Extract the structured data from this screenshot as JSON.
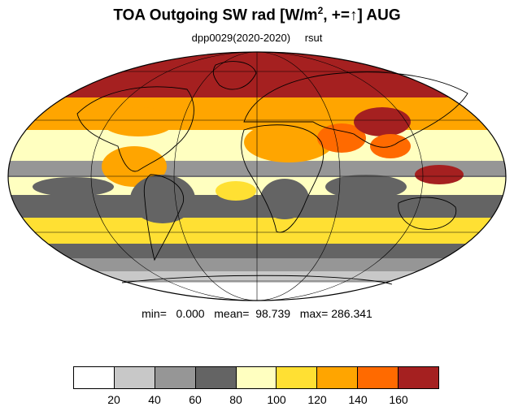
{
  "title": {
    "text_before": "TOA Outgoing SW rad [W/m",
    "superscript": "2",
    "text_middle": ", +=",
    "arrow": "↑",
    "text_after": "] AUG"
  },
  "subtitle": {
    "run": "dpp0029(2020-2020)",
    "variable": "rsut"
  },
  "stats": "min=   0.000   mean=  98.739   max= 286.341",
  "colorbar": {
    "colors": [
      "#ffffff",
      "#c8c8c8",
      "#969696",
      "#646464",
      "#ffffc0",
      "#ffe033",
      "#ffa500",
      "#ff6a00",
      "#a52020"
    ],
    "tick_labels": [
      "20",
      "40",
      "60",
      "80",
      "100",
      "120",
      "140",
      "160"
    ]
  },
  "map": {
    "projection": "Mollweide",
    "ocean_color": "#646464",
    "coastline_color": "#000000",
    "grid_color": "#000000"
  }
}
